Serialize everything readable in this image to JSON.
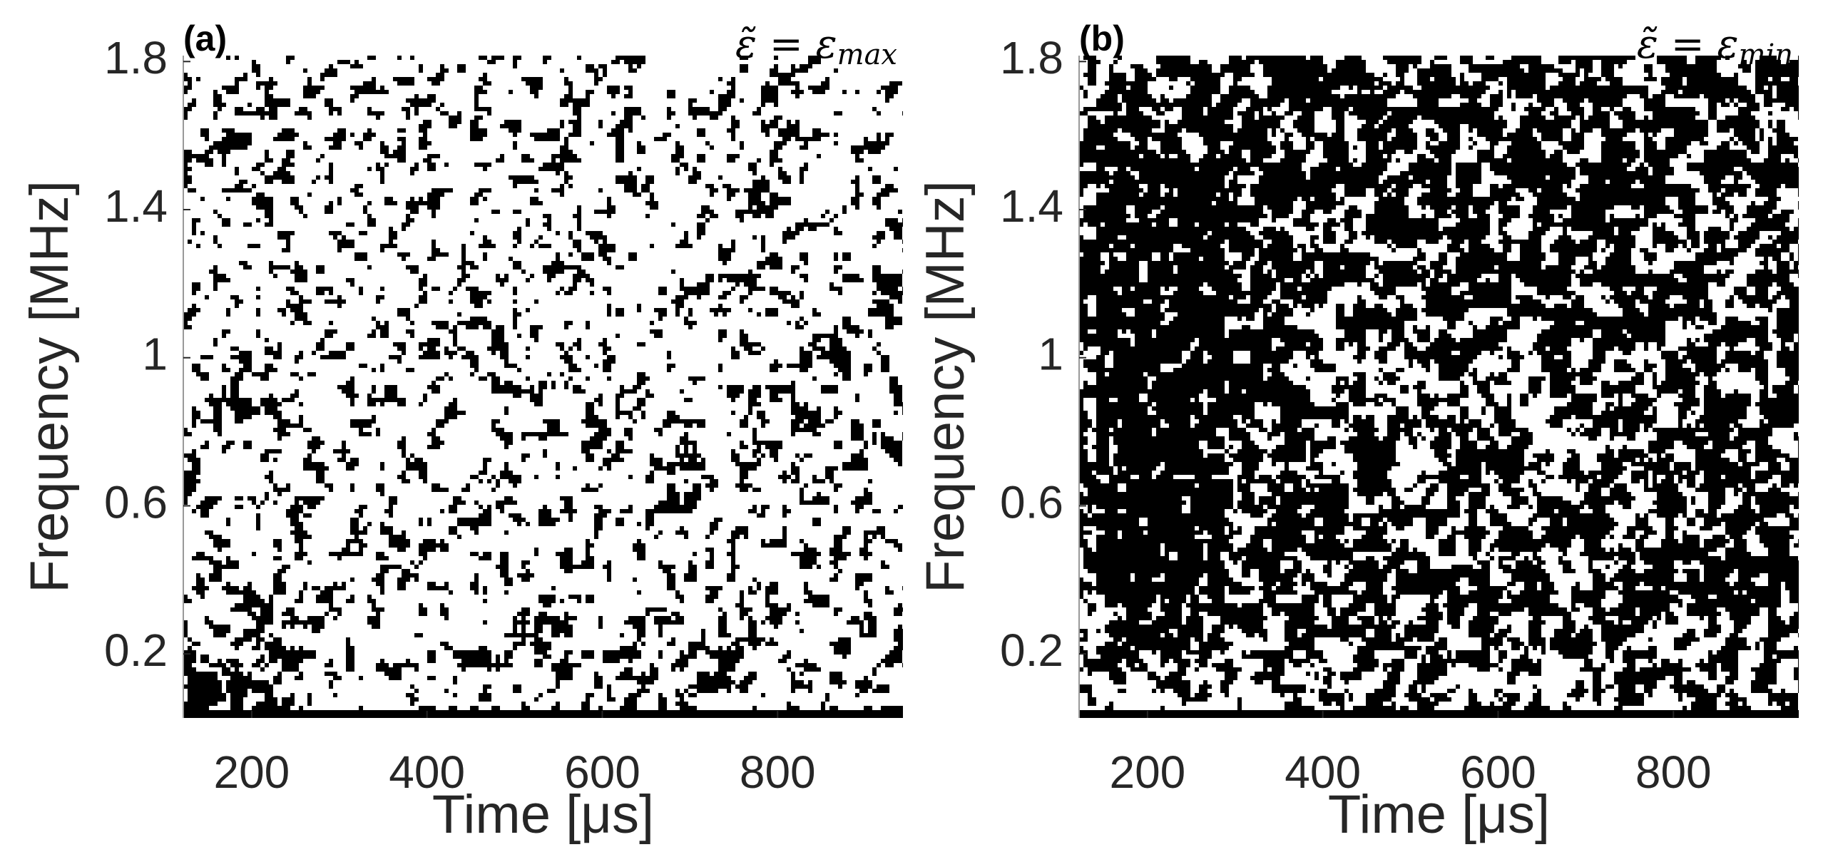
{
  "chart_data": [
    {
      "type": "binary-map",
      "panel_label": "(a)",
      "annotation": {
        "text": "ε̃ = ε",
        "subscript": "max"
      },
      "xlabel": "Time [μs]",
      "ylabel": "Frequency [MHz]",
      "xlim": [
        122,
        943
      ],
      "ylim": [
        0.027,
        1.816
      ],
      "xticks": [
        200,
        400,
        600,
        800
      ],
      "yticks": [
        0.2,
        0.6,
        1,
        1.4,
        1.8
      ],
      "colors": [
        "#000000",
        "#ffffff"
      ]
    },
    {
      "type": "binary-map",
      "panel_label": "(b)",
      "annotation": {
        "text": "ε̃ = ε",
        "subscript": "min"
      },
      "xlabel": "Time [μs]",
      "ylabel": "Frequency [MHz]",
      "xlim": [
        122,
        943
      ],
      "ylim": [
        0.027,
        1.816
      ],
      "xticks": [
        200,
        400,
        600,
        800
      ],
      "yticks": [
        0.2,
        0.6,
        1,
        1.4,
        1.8
      ],
      "colors": [
        "#000000",
        "#ffffff"
      ]
    }
  ]
}
